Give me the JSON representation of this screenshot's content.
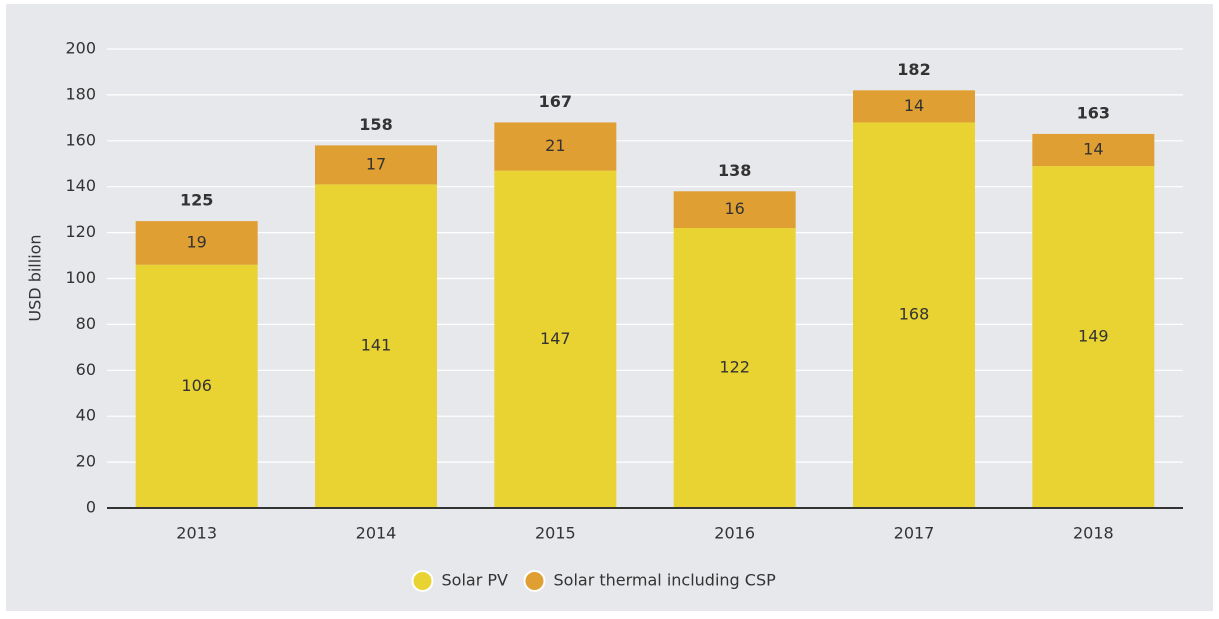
{
  "chart_data": {
    "type": "stacked_bar",
    "y_label": "USD billion",
    "categories": [
      "2013",
      "2014",
      "2015",
      "2016",
      "2017",
      "2018"
    ],
    "series": [
      {
        "name": "Solar PV",
        "color": "#e8d333",
        "values": [
          106,
          141,
          147,
          122,
          168,
          149
        ]
      },
      {
        "name": "Solar thermal including CSP",
        "color": "#e09f33",
        "values": [
          19,
          17,
          21,
          16,
          14,
          14
        ]
      }
    ],
    "totals": [
      125,
      158,
      167,
      138,
      182,
      163
    ],
    "ylim": [
      0,
      200
    ],
    "yticks": [
      0,
      20,
      40,
      60,
      80,
      100,
      120,
      140,
      160,
      180,
      200
    ],
    "grid": true,
    "legend": "bottom"
  }
}
